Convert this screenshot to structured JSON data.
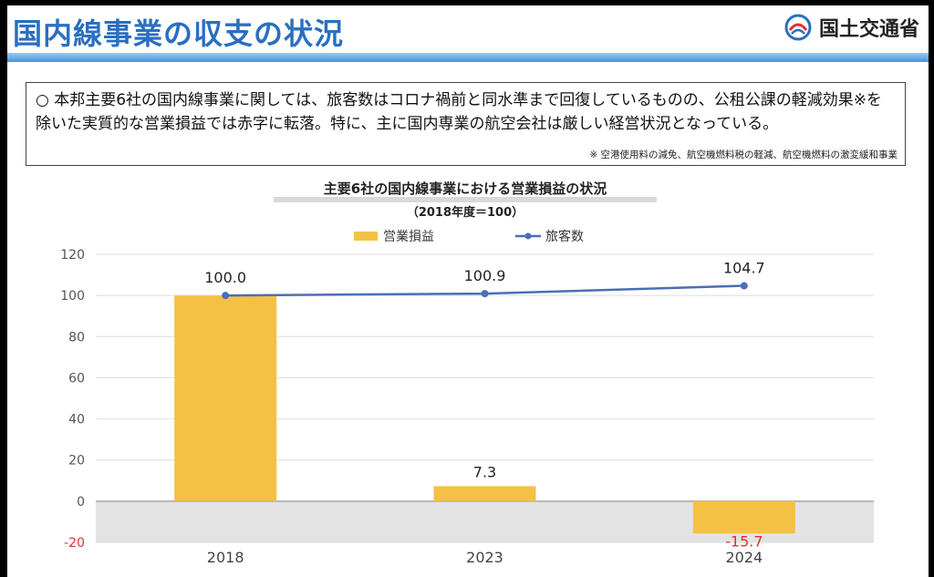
{
  "header": {
    "title": "国内線事業の収支の状況",
    "logo_text": "国土交通省",
    "colors": {
      "title": "#2a6fc0",
      "band": "#4d93d4"
    }
  },
  "summary": {
    "text": "○ 本邦主要6社の国内線事業に関しては、旅客数はコロナ禍前と同水準まで回復しているものの、公租公課の軽減効果※を除いた実質的な営業損益では赤字に転落。特に、主に国内専業の航空会社は厳しい経営状況となっている。",
    "note": "※ 空港使用料の減免、航空機燃料税の軽減、航空機燃料の激変緩和事業"
  },
  "chart_data": {
    "type": "bar",
    "title": "主要6社の国内線事業における営業損益の状況",
    "subtitle": "（2018年度＝100）",
    "categories": [
      "2018",
      "2023",
      "2024"
    ],
    "series": [
      {
        "name": "営業損益",
        "type": "bar",
        "color": "#f5c144",
        "values": [
          100.0,
          7.3,
          -15.7
        ],
        "labels": [
          "",
          "7.3",
          "-15.7"
        ]
      },
      {
        "name": "旅客数",
        "type": "line",
        "color": "#4a6fb5",
        "values": [
          100.0,
          100.9,
          104.7
        ],
        "labels": [
          "100.0",
          "100.9",
          "104.7"
        ]
      }
    ],
    "y_ticks": [
      "-20",
      "0",
      "20",
      "40",
      "60",
      "80",
      "100",
      "120"
    ],
    "ylim": [
      -20,
      120
    ],
    "grid": true,
    "negative_region_color": "#e3e3e3",
    "negative_label_color": "#e0302b",
    "legend_position": "top"
  }
}
